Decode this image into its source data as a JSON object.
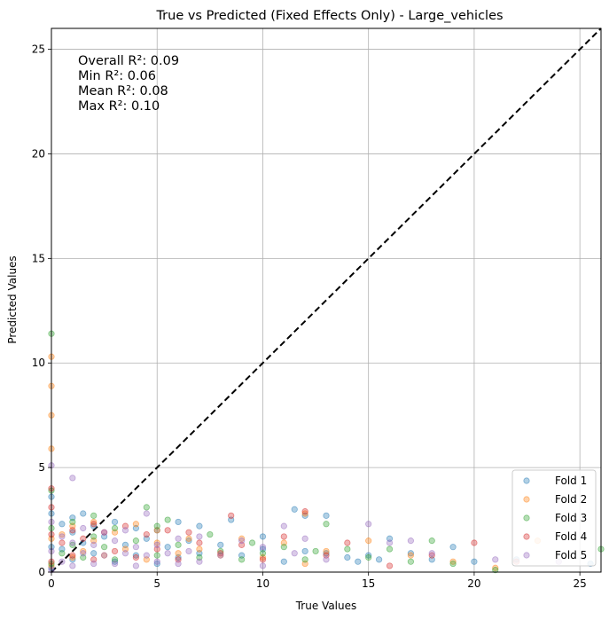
{
  "chart_data": {
    "type": "scatter",
    "title": "True vs Predicted (Fixed Effects Only) - Large_vehicles",
    "xlabel": "True Values",
    "ylabel": "Predicted Values",
    "xlim": [
      0,
      26
    ],
    "ylim": [
      0,
      26
    ],
    "xticks": [
      0,
      5,
      10,
      15,
      20,
      25
    ],
    "yticks": [
      0,
      5,
      10,
      15,
      20,
      25
    ],
    "grid": true,
    "legend_position": "lower-right",
    "annotations": [
      "Overall R²: 0.09",
      "Min R²: 0.06",
      "Mean R²: 0.08",
      "Max R²: 0.10"
    ],
    "reference_line": {
      "from": [
        0,
        0
      ],
      "to": [
        26,
        26
      ],
      "style": "dashed",
      "color": "#000000"
    },
    "series": [
      {
        "name": "Fold 1",
        "color": "#1f77b4",
        "points": [
          [
            0,
            0.2
          ],
          [
            0,
            1.2
          ],
          [
            0,
            2.8
          ],
          [
            0,
            3.6
          ],
          [
            0.5,
            1.1
          ],
          [
            0.5,
            2.3
          ],
          [
            1,
            0.6
          ],
          [
            1,
            1.9
          ],
          [
            1,
            2.6
          ],
          [
            1.5,
            1.4
          ],
          [
            1.5,
            2.8
          ],
          [
            2,
            0.9
          ],
          [
            2,
            2.2
          ],
          [
            2.5,
            1.7
          ],
          [
            3,
            0.5
          ],
          [
            3,
            2.4
          ],
          [
            3.5,
            1.3
          ],
          [
            4,
            0.8
          ],
          [
            4,
            2.1
          ],
          [
            4.5,
            1.6
          ],
          [
            5,
            0.4
          ],
          [
            5,
            2.0
          ],
          [
            5.5,
            1.2
          ],
          [
            6,
            0.7
          ],
          [
            6,
            2.4
          ],
          [
            6.5,
            1.5
          ],
          [
            7,
            0.9
          ],
          [
            7,
            2.2
          ],
          [
            8,
            1.3
          ],
          [
            8.5,
            2.5
          ],
          [
            9,
            0.8
          ],
          [
            10,
            1.1
          ],
          [
            10,
            1.7
          ],
          [
            11,
            0.5
          ],
          [
            11.5,
            3.0
          ],
          [
            12,
            1.0
          ],
          [
            12,
            2.7
          ],
          [
            13,
            0.9
          ],
          [
            13,
            2.7
          ],
          [
            14,
            0.7
          ],
          [
            14.5,
            0.5
          ],
          [
            15,
            0.8
          ],
          [
            15.5,
            0.6
          ],
          [
            16,
            1.6
          ],
          [
            17,
            0.9
          ],
          [
            18,
            0.6
          ],
          [
            19,
            1.2
          ],
          [
            20,
            0.5
          ],
          [
            22,
            0.6
          ],
          [
            25.5,
            0.4
          ]
        ]
      },
      {
        "name": "Fold 2",
        "color": "#ff7f0e",
        "points": [
          [
            0,
            0.3
          ],
          [
            0,
            1.6
          ],
          [
            0,
            5.9
          ],
          [
            0,
            7.5
          ],
          [
            0,
            8.9
          ],
          [
            0,
            10.3
          ],
          [
            0.5,
            1.8
          ],
          [
            1,
            0.7
          ],
          [
            1,
            2.2
          ],
          [
            1.5,
            1.0
          ],
          [
            2,
            1.5
          ],
          [
            2,
            2.4
          ],
          [
            2.5,
            0.8
          ],
          [
            3,
            1.9
          ],
          [
            3.5,
            1.1
          ],
          [
            4,
            2.3
          ],
          [
            4.5,
            0.6
          ],
          [
            5,
            1.4
          ],
          [
            5,
            2.0
          ],
          [
            6,
            0.9
          ],
          [
            6.5,
            1.6
          ],
          [
            7,
            1.1
          ],
          [
            8,
            0.8
          ],
          [
            9,
            1.6
          ],
          [
            10,
            0.7
          ],
          [
            11,
            1.4
          ],
          [
            12,
            0.4
          ],
          [
            12,
            2.8
          ],
          [
            13,
            1.0
          ],
          [
            15,
            1.5
          ],
          [
            17,
            0.8
          ],
          [
            19,
            0.5
          ],
          [
            21,
            0.2
          ],
          [
            23,
            1.5
          ]
        ]
      },
      {
        "name": "Fold 3",
        "color": "#2ca02c",
        "points": [
          [
            0,
            0.4
          ],
          [
            0,
            2.1
          ],
          [
            0,
            3.9
          ],
          [
            0,
            11.4
          ],
          [
            0.5,
            0.9
          ],
          [
            1,
            1.3
          ],
          [
            1,
            2.4
          ],
          [
            1.5,
            0.7
          ],
          [
            2,
            1.7
          ],
          [
            2,
            2.7
          ],
          [
            2.5,
            1.2
          ],
          [
            3,
            0.6
          ],
          [
            3,
            2.1
          ],
          [
            4,
            1.5
          ],
          [
            4.5,
            3.1
          ],
          [
            5,
            0.8
          ],
          [
            5,
            2.2
          ],
          [
            5.5,
            2.5
          ],
          [
            6,
            1.3
          ],
          [
            7,
            0.7
          ],
          [
            7.5,
            1.8
          ],
          [
            8,
            1.0
          ],
          [
            9,
            0.6
          ],
          [
            9.5,
            1.4
          ],
          [
            10,
            0.9
          ],
          [
            11,
            1.2
          ],
          [
            12,
            0.6
          ],
          [
            12.5,
            1.0
          ],
          [
            13,
            2.3
          ],
          [
            14,
            1.1
          ],
          [
            15,
            0.7
          ],
          [
            16,
            1.1
          ],
          [
            17,
            0.5
          ],
          [
            18,
            1.5
          ],
          [
            19,
            0.4
          ],
          [
            21,
            0.1
          ],
          [
            26,
            1.1
          ]
        ]
      },
      {
        "name": "Fold 4",
        "color": "#d62728",
        "points": [
          [
            0,
            0.5
          ],
          [
            0,
            1.8
          ],
          [
            0,
            3.1
          ],
          [
            0,
            4.0
          ],
          [
            0.5,
            1.4
          ],
          [
            1,
            0.8
          ],
          [
            1,
            2.0
          ],
          [
            1.5,
            1.6
          ],
          [
            2,
            0.6
          ],
          [
            2,
            2.3
          ],
          [
            2.5,
            1.9
          ],
          [
            3,
            1.0
          ],
          [
            3.5,
            2.2
          ],
          [
            4,
            0.7
          ],
          [
            4.5,
            1.8
          ],
          [
            5,
            1.1
          ],
          [
            5.5,
            2.0
          ],
          [
            6,
            0.6
          ],
          [
            6.5,
            1.9
          ],
          [
            7,
            1.4
          ],
          [
            8,
            0.9
          ],
          [
            8.5,
            2.7
          ],
          [
            9,
            1.3
          ],
          [
            10,
            0.6
          ],
          [
            11,
            1.7
          ],
          [
            12,
            2.9
          ],
          [
            13,
            0.8
          ],
          [
            14,
            1.4
          ],
          [
            16,
            0.3
          ],
          [
            18,
            0.8
          ],
          [
            20,
            1.4
          ],
          [
            22,
            0.5
          ]
        ]
      },
      {
        "name": "Fold 5",
        "color": "#9467bd",
        "points": [
          [
            0,
            0.1
          ],
          [
            0,
            1.0
          ],
          [
            0,
            2.4
          ],
          [
            0,
            5.1
          ],
          [
            0.5,
            0.5
          ],
          [
            0.5,
            1.7
          ],
          [
            1,
            0.3
          ],
          [
            1,
            1.4
          ],
          [
            1,
            4.5
          ],
          [
            1.5,
            0.9
          ],
          [
            1.5,
            2.1
          ],
          [
            2,
            0.4
          ],
          [
            2,
            1.3
          ],
          [
            2.5,
            0.8
          ],
          [
            2.5,
            1.9
          ],
          [
            3,
            0.4
          ],
          [
            3,
            1.5
          ],
          [
            3.5,
            0.9
          ],
          [
            3.5,
            2.0
          ],
          [
            4,
            0.3
          ],
          [
            4,
            1.2
          ],
          [
            4.5,
            0.8
          ],
          [
            4.5,
            2.8
          ],
          [
            5,
            0.5
          ],
          [
            5,
            1.3
          ],
          [
            5.5,
            0.9
          ],
          [
            6,
            0.4
          ],
          [
            6,
            1.6
          ],
          [
            6.5,
            1.0
          ],
          [
            7,
            0.5
          ],
          [
            7,
            1.7
          ],
          [
            8,
            0.8
          ],
          [
            9,
            1.5
          ],
          [
            10,
            0.3
          ],
          [
            10,
            1.2
          ],
          [
            11,
            2.2
          ],
          [
            11.5,
            0.9
          ],
          [
            12,
            1.6
          ],
          [
            13,
            0.6
          ],
          [
            15,
            2.3
          ],
          [
            16,
            1.4
          ],
          [
            17,
            1.5
          ],
          [
            18,
            0.9
          ],
          [
            21,
            0.6
          ],
          [
            24,
            0.5
          ]
        ]
      }
    ]
  }
}
